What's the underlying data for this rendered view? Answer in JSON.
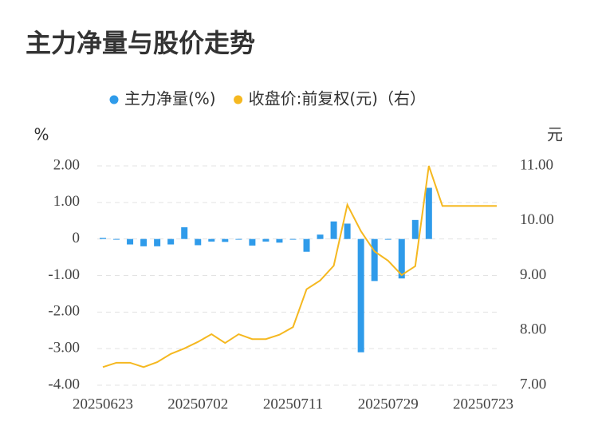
{
  "chart_data": {
    "type": "bar-line",
    "title": "主力净量与股价走势",
    "y_label": "%",
    "y2_label": "元",
    "categories": [
      "20250623",
      null,
      null,
      null,
      null,
      null,
      null,
      "20250702",
      null,
      null,
      null,
      null,
      null,
      null,
      "20250711",
      null,
      null,
      null,
      null,
      null,
      null,
      "20250729",
      null,
      null,
      null,
      null,
      null,
      null,
      "20250723",
      null
    ],
    "series": [
      {
        "name": "主力净量(%)",
        "color": "#2f9bea",
        "type": "bar",
        "values": [
          0.03,
          -0.02,
          -0.15,
          -0.2,
          -0.2,
          -0.15,
          0.32,
          -0.17,
          -0.07,
          -0.08,
          -0.02,
          -0.18,
          -0.07,
          -0.1,
          -0.02,
          -0.35,
          0.12,
          0.48,
          0.42,
          -3.1,
          -1.15,
          -0.02,
          -1.08,
          0.52,
          1.4,
          0,
          0,
          0,
          0,
          0
        ]
      },
      {
        "name": "收盘价:前复权(元)（右）",
        "color": "#f5b820",
        "type": "line",
        "axis": "y2",
        "values": [
          7.33,
          7.41,
          7.41,
          7.33,
          7.42,
          7.57,
          7.67,
          7.79,
          7.93,
          7.77,
          7.93,
          7.84,
          7.84,
          7.92,
          8.06,
          8.75,
          8.91,
          9.18,
          10.29,
          9.81,
          9.44,
          9.27,
          9.01,
          9.17,
          11.0,
          10.27,
          10.27,
          10.27,
          10.27,
          10.27
        ]
      }
    ],
    "ylim": [
      -4,
      2
    ],
    "yticks": [
      {
        "value": -4,
        "label": "-4.00"
      },
      {
        "value": -3,
        "label": "-3.00"
      },
      {
        "value": -2,
        "label": "-2.00"
      },
      {
        "value": -1,
        "label": "-1.00"
      },
      0,
      {
        "value": 1,
        "label": "1.00"
      },
      {
        "value": 2,
        "label": "2.00"
      }
    ],
    "y2lim": [
      7,
      11
    ],
    "y2ticks": [
      {
        "value": 7,
        "label": "7.00"
      },
      {
        "value": 8,
        "label": "8.00"
      },
      {
        "value": 9,
        "label": "9.00"
      },
      {
        "value": 10,
        "label": "10.00"
      },
      {
        "value": 11,
        "label": "11.00"
      }
    ],
    "grid": true,
    "legend": "top"
  }
}
